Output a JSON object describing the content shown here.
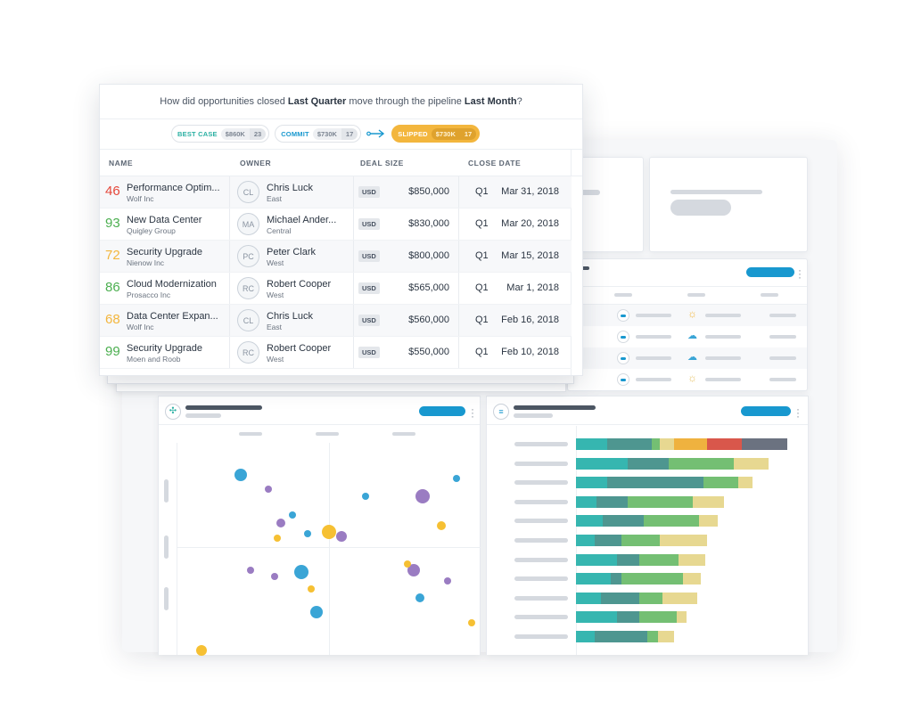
{
  "question": {
    "prefix": "How did opportunities closed",
    "period1": "Last Quarter",
    "middle": "move through the pipeline",
    "period2": "Last Month",
    "suffix": "?"
  },
  "chips": {
    "best_case": {
      "label": "BEST CASE",
      "amount": "$860K",
      "count": "23"
    },
    "commit": {
      "label": "COMMIT",
      "amount": "$730K",
      "count": "17"
    },
    "slipped": {
      "label": "SLIPPED",
      "amount": "$730K",
      "count": "17"
    }
  },
  "columns": {
    "name": "NAME",
    "owner": "OWNER",
    "deal_size": "DEAL SIZE",
    "close_date": "CLOSE DATE"
  },
  "rows": [
    {
      "score": "46",
      "score_color": "#e5473a",
      "name": "Performance Optim...",
      "company": "Wolf Inc",
      "initials": "CL",
      "owner": "Chris Luck",
      "region": "East",
      "currency": "USD",
      "amount": "$850,000",
      "quarter": "Q1",
      "date": "Mar 31, 2018"
    },
    {
      "score": "93",
      "score_color": "#4caf50",
      "name": "New Data Center",
      "company": "Quigley Group",
      "initials": "MA",
      "owner": "Michael Ander...",
      "region": "Central",
      "currency": "USD",
      "amount": "$830,000",
      "quarter": "Q1",
      "date": "Mar 20, 2018"
    },
    {
      "score": "72",
      "score_color": "#f3b63d",
      "name": "Security Upgrade",
      "company": "Nienow Inc",
      "initials": "PC",
      "owner": "Peter Clark",
      "region": "West",
      "currency": "USD",
      "amount": "$800,000",
      "quarter": "Q1",
      "date": "Mar 15, 2018"
    },
    {
      "score": "86",
      "score_color": "#4caf50",
      "name": "Cloud Modernization",
      "company": "Prosacco Inc",
      "initials": "RC",
      "owner": "Robert Cooper",
      "region": "West",
      "currency": "USD",
      "amount": "$565,000",
      "quarter": "Q1",
      "date": "Mar 1, 2018"
    },
    {
      "score": "68",
      "score_color": "#f3b63d",
      "name": "Data Center Expan...",
      "company": "Wolf Inc",
      "initials": "CL",
      "owner": "Chris Luck",
      "region": "East",
      "currency": "USD",
      "amount": "$560,000",
      "quarter": "Q1",
      "date": "Feb 16, 2018"
    },
    {
      "score": "99",
      "score_color": "#4caf50",
      "name": "Security Upgrade",
      "company": "Moen and Roob",
      "initials": "RC",
      "owner": "Robert Cooper",
      "region": "West",
      "currency": "USD",
      "amount": "$550,000",
      "quarter": "Q1",
      "date": "Feb 10, 2018"
    }
  ],
  "icons": {
    "scatter_widget": "scatter-chart-icon",
    "bar_widget": "list-icon",
    "weather": [
      "sun-icon",
      "cloud-sun-icon",
      "cloud-icon",
      "sun-low-icon"
    ]
  },
  "colors": {
    "teal": "#36b6b0",
    "dark_teal": "#4e9690",
    "green": "#74bf73",
    "sand": "#e7d891",
    "orange": "#efb23f",
    "red": "#d9574b",
    "slate": "#6b7280",
    "blue": "#1898cf",
    "purple": "#9a7cc2",
    "yellow": "#f6c033"
  },
  "chart_data": [
    {
      "type": "scatter",
      "series": [
        {
          "color": "#3aa5d6",
          "points": [
            [
              0.21,
              0.85,
              7
            ],
            [
              0.62,
              0.75,
              4
            ],
            [
              0.92,
              0.83,
              4
            ],
            [
              0.43,
              0.57,
              4
            ],
            [
              0.38,
              0.66,
              4
            ],
            [
              0.41,
              0.39,
              8
            ],
            [
              0.46,
              0.2,
              7
            ],
            [
              0.8,
              0.27,
              5
            ]
          ]
        },
        {
          "color": "#9a7cc2",
          "points": [
            [
              0.3,
              0.78,
              4
            ],
            [
              0.34,
              0.62,
              5
            ],
            [
              0.54,
              0.56,
              6
            ],
            [
              0.81,
              0.75,
              8
            ],
            [
              0.78,
              0.4,
              7
            ],
            [
              0.24,
              0.4,
              4
            ],
            [
              0.32,
              0.37,
              4
            ],
            [
              0.89,
              0.35,
              4
            ]
          ]
        },
        {
          "color": "#f6c033",
          "points": [
            [
              0.33,
              0.55,
              4
            ],
            [
              0.5,
              0.58,
              8
            ],
            [
              0.87,
              0.61,
              5
            ],
            [
              0.76,
              0.43,
              4
            ],
            [
              0.44,
              0.31,
              4
            ],
            [
              0.97,
              0.15,
              4
            ],
            [
              0.08,
              0.02,
              6
            ]
          ]
        }
      ]
    },
    {
      "type": "bar",
      "stacked": true,
      "orientation": "horizontal",
      "segment_colors": [
        "#36b6b0",
        "#4e9690",
        "#74bf73",
        "#e7d891",
        "#efb23f",
        "#d9574b",
        "#6b7280"
      ],
      "rows": [
        [
          15,
          22,
          4,
          7,
          16,
          17,
          22
        ],
        [
          25,
          20,
          32,
          17
        ],
        [
          15,
          47,
          17,
          7
        ],
        [
          10,
          15,
          32,
          15
        ],
        [
          13,
          20,
          27,
          9
        ],
        [
          9,
          13,
          19,
          23
        ],
        [
          20,
          11,
          19,
          13
        ],
        [
          17,
          5,
          30,
          9
        ],
        [
          12,
          19,
          11,
          17
        ],
        [
          20,
          11,
          18,
          5
        ],
        [
          9,
          26,
          5,
          8
        ]
      ]
    }
  ]
}
